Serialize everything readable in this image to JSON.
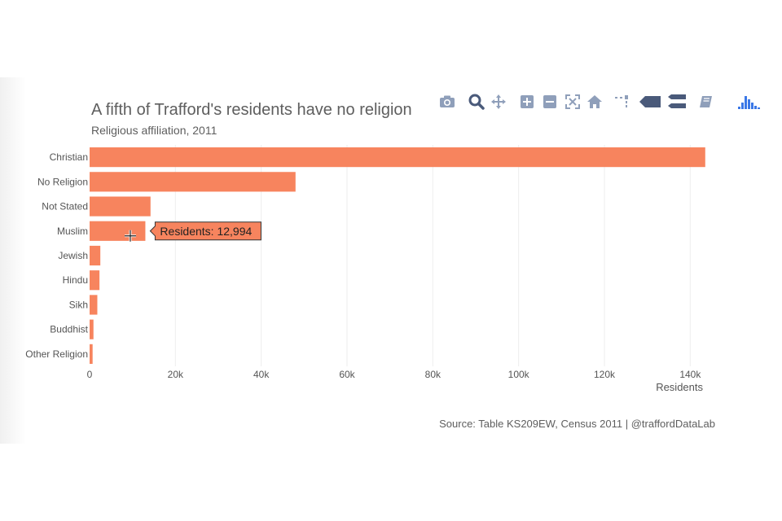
{
  "chart_data": {
    "type": "bar",
    "orientation": "horizontal",
    "title": "A fifth of Trafford's residents have no religion",
    "subtitle": "Religious affiliation, 2011",
    "categories": [
      "Christian",
      "No Religion",
      "Not Stated",
      "Muslim",
      "Jewish",
      "Hindu",
      "Sikh",
      "Buddhist",
      "Other Religion"
    ],
    "values": [
      143500,
      48000,
      14200,
      12994,
      2500,
      2300,
      1800,
      900,
      700
    ],
    "xlabel": "Residents",
    "ylabel": "",
    "xlim": [
      0,
      150000
    ],
    "xticks": [
      0,
      20000,
      40000,
      60000,
      80000,
      100000,
      120000,
      140000
    ],
    "xtick_labels": [
      "0",
      "20k",
      "40k",
      "60k",
      "80k",
      "100k",
      "120k",
      "140k"
    ],
    "grid": true,
    "bar_color": "#f7845e",
    "tooltip": {
      "category": "Muslim",
      "label": "Residents:",
      "value": "12,994"
    },
    "source": "Source: Table KS209EW, Census 2011  |  @traffordDataLab"
  },
  "toolbar": {
    "icons": [
      "camera-icon",
      "zoom-icon",
      "pan-icon",
      "zoom-in-icon",
      "zoom-out-icon",
      "autoscale-icon",
      "reset-axes-icon",
      "spike-lines-icon",
      "closest-hover-icon",
      "compare-hover-icon",
      "edit-icon",
      "logo-icon"
    ],
    "icon_color": "#8f9fba",
    "active_color": "#4a5a7a",
    "logo_color": "#3b78e7"
  }
}
